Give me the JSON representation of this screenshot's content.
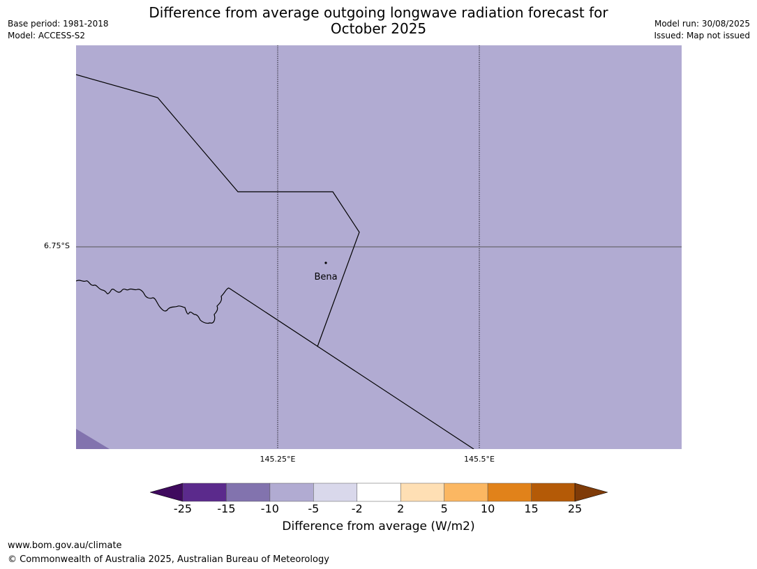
{
  "header": {
    "title_line1": "Difference from average outgoing longwave radiation forecast for",
    "title_line2": "October 2025",
    "base_period": "Base period: 1981-2018",
    "model": "Model: ACCESS-S2",
    "model_run": "Model run: 30/08/2025",
    "issued": "Issued: Map not issued"
  },
  "map": {
    "background_color": "#b1abd2",
    "corner_color": "#8273ae",
    "latitude_labels": [
      "6.75°S"
    ],
    "longitude_labels": [
      "145.25°E",
      "145.5°E"
    ],
    "places": [
      {
        "name": "Bena"
      }
    ]
  },
  "legend": {
    "label": "Difference from average (W/m2)",
    "ticks": [
      "-25",
      "-15",
      "-10",
      "-5",
      "-2",
      "2",
      "5",
      "10",
      "15",
      "25"
    ],
    "colors": [
      "#3f0a5e",
      "#5b2a8c",
      "#8273ae",
      "#b1abd2",
      "#d9d8eb",
      "#ffffff",
      "#fedfb4",
      "#fbb762",
      "#e1821a",
      "#b45a07",
      "#7f3b08"
    ]
  },
  "footer": {
    "url": "www.bom.gov.au/climate",
    "copyright": "© Commonwealth of Australia 2025, Australian Bureau of Meteorology"
  }
}
